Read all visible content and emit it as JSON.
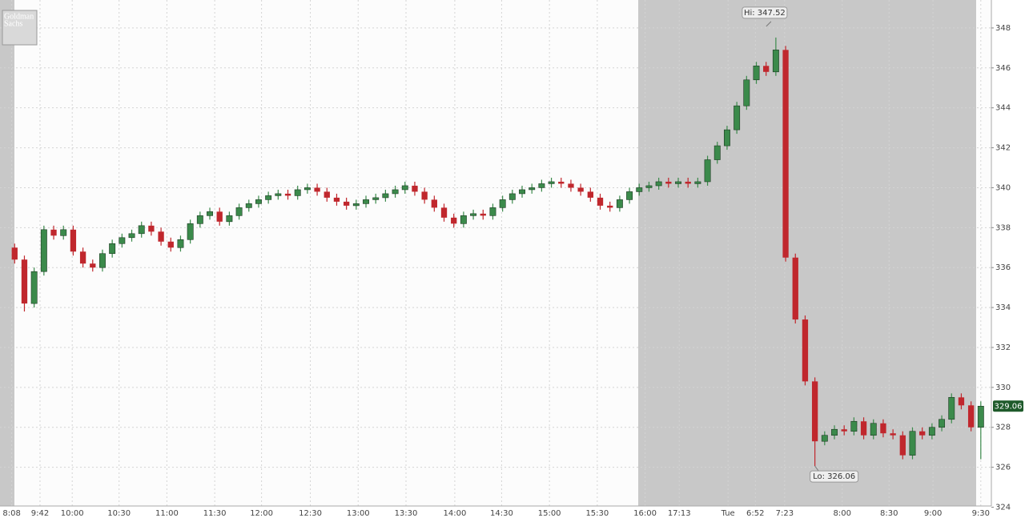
{
  "chart_data": {
    "type": "candlestick",
    "logo": [
      "Goldman",
      "Sachs"
    ],
    "xlim": [
      -1.5,
      100
    ],
    "xticks": [
      {
        "value": -0.3,
        "label": "8:08"
      },
      {
        "value": 2.6,
        "label": "9:42"
      },
      {
        "value": 5.9,
        "label": "10:00"
      },
      {
        "value": 10.7,
        "label": "10:30"
      },
      {
        "value": 15.6,
        "label": "11:00"
      },
      {
        "value": 20.5,
        "label": "11:30"
      },
      {
        "value": 25.3,
        "label": "12:00"
      },
      {
        "value": 30.3,
        "label": "12:30"
      },
      {
        "value": 35.2,
        "label": "13:00"
      },
      {
        "value": 40.1,
        "label": "13:30"
      },
      {
        "value": 45.1,
        "label": "14:00"
      },
      {
        "value": 49.9,
        "label": "14:30"
      },
      {
        "value": 54.8,
        "label": "15:00"
      },
      {
        "value": 59.7,
        "label": "15:30"
      },
      {
        "value": 64.6,
        "label": "16:00"
      },
      {
        "value": 68.1,
        "label": "17:13"
      },
      {
        "value": 73.1,
        "label": "Tue"
      },
      {
        "value": 75.9,
        "label": "6:52"
      },
      {
        "value": 78.9,
        "label": "7:23"
      },
      {
        "value": 84.8,
        "label": "8:00"
      },
      {
        "value": 89.6,
        "label": "8:30"
      },
      {
        "value": 94.1,
        "label": "9:00"
      },
      {
        "value": 99.0,
        "label": "9:30"
      }
    ],
    "ylim": [
      323.9,
      349.4
    ],
    "yticks": [
      324,
      326,
      328,
      330,
      332,
      334,
      336,
      338,
      340,
      342,
      344,
      346,
      348
    ],
    "grid": true,
    "hi_label": "Hi: 347.52",
    "lo_label": "Lo: 326.06",
    "last_label": "329.06",
    "series": [
      {
        "up_color": "#3b8a4b",
        "down_color": "#c0272d",
        "open": [
          337.0,
          336.4,
          334.2,
          335.8,
          337.9,
          337.6,
          337.9,
          336.8,
          336.2,
          336.0,
          336.7,
          337.2,
          337.5,
          337.7,
          338.1,
          337.8,
          337.3,
          337.0,
          337.4,
          338.2,
          338.6,
          338.8,
          338.3,
          338.6,
          339.0,
          339.2,
          339.4,
          339.6,
          339.7,
          339.6,
          339.9,
          340.0,
          339.8,
          339.5,
          339.3,
          339.1,
          339.2,
          339.4,
          339.5,
          339.7,
          339.9,
          340.1,
          339.8,
          339.4,
          339.0,
          338.5,
          338.2,
          338.6,
          338.7,
          338.6,
          339.0,
          339.4,
          339.7,
          339.9,
          340.0,
          340.2,
          340.3,
          340.2,
          340.0,
          339.8,
          339.5,
          339.1,
          339.0,
          339.4,
          339.8,
          340.0,
          340.1,
          340.3,
          340.2,
          340.3,
          340.2,
          340.3,
          341.4,
          342.1,
          342.9,
          344.1,
          345.4,
          346.1,
          345.8,
          346.9,
          336.5,
          333.4,
          330.3,
          327.3,
          327.6,
          327.9,
          327.8,
          328.3,
          327.6,
          328.2,
          327.7,
          327.6,
          326.6,
          327.8,
          327.6,
          328.0,
          328.4,
          329.5,
          329.1,
          328.0
        ],
        "high": [
          337.2,
          336.6,
          336.0,
          338.1,
          338.1,
          338.1,
          338.1,
          337.0,
          336.4,
          336.9,
          337.4,
          337.7,
          337.9,
          338.3,
          338.3,
          338.0,
          337.5,
          337.6,
          338.4,
          338.8,
          339.0,
          339.0,
          338.8,
          339.2,
          339.4,
          339.6,
          339.8,
          339.9,
          339.9,
          340.1,
          340.2,
          340.2,
          340.0,
          339.7,
          339.5,
          339.4,
          339.6,
          339.7,
          339.9,
          340.1,
          340.3,
          340.3,
          340.0,
          339.6,
          339.2,
          338.7,
          338.8,
          338.9,
          338.9,
          339.2,
          339.6,
          339.9,
          340.1,
          340.2,
          340.4,
          340.5,
          340.5,
          340.4,
          340.2,
          340.0,
          339.7,
          339.3,
          339.6,
          340.0,
          340.2,
          340.3,
          340.5,
          340.5,
          340.5,
          340.5,
          340.5,
          341.6,
          342.3,
          343.1,
          344.3,
          345.6,
          346.3,
          346.3,
          347.52,
          347.1,
          336.7,
          333.6,
          330.5,
          327.8,
          328.1,
          328.1,
          328.5,
          328.5,
          328.4,
          328.4,
          327.9,
          327.8,
          328.0,
          328.0,
          328.2,
          328.6,
          329.7,
          329.7,
          329.3,
          329.3
        ],
        "low": [
          336.2,
          333.8,
          334.0,
          335.6,
          337.4,
          337.4,
          336.6,
          336.0,
          335.8,
          335.8,
          336.5,
          337.0,
          337.3,
          337.5,
          337.6,
          337.1,
          336.8,
          336.8,
          337.2,
          338.0,
          338.4,
          338.1,
          338.1,
          338.4,
          338.8,
          339.0,
          339.2,
          339.4,
          339.4,
          339.4,
          339.7,
          339.6,
          339.3,
          339.1,
          338.9,
          338.9,
          339.0,
          339.2,
          339.3,
          339.5,
          339.7,
          339.6,
          339.2,
          338.8,
          338.3,
          338.0,
          338.0,
          338.4,
          338.4,
          338.4,
          338.8,
          339.2,
          339.5,
          339.7,
          339.8,
          340.0,
          340.0,
          339.8,
          339.6,
          339.3,
          338.9,
          338.8,
          338.8,
          339.2,
          339.6,
          339.8,
          339.9,
          340.0,
          340.0,
          340.0,
          340.0,
          340.1,
          341.2,
          341.9,
          342.7,
          343.9,
          345.2,
          345.6,
          345.6,
          336.3,
          333.2,
          330.1,
          326.06,
          327.1,
          327.4,
          327.6,
          327.6,
          327.4,
          327.4,
          327.5,
          327.4,
          326.4,
          326.4,
          327.4,
          327.4,
          327.8,
          328.2,
          328.9,
          327.8,
          326.4
        ],
        "close": [
          336.4,
          334.2,
          335.8,
          337.9,
          337.6,
          337.9,
          336.8,
          336.2,
          336.0,
          336.7,
          337.2,
          337.5,
          337.7,
          338.1,
          337.8,
          337.3,
          337.0,
          337.4,
          338.2,
          338.6,
          338.8,
          338.3,
          338.6,
          339.0,
          339.2,
          339.4,
          339.6,
          339.7,
          339.6,
          339.9,
          340.0,
          339.8,
          339.5,
          339.3,
          339.1,
          339.2,
          339.4,
          339.5,
          339.7,
          339.9,
          340.1,
          339.8,
          339.4,
          339.0,
          338.5,
          338.2,
          338.6,
          338.7,
          338.6,
          339.0,
          339.4,
          339.7,
          339.9,
          340.0,
          340.2,
          340.3,
          340.2,
          340.0,
          339.8,
          339.5,
          339.1,
          339.0,
          339.4,
          339.8,
          340.0,
          340.1,
          340.3,
          340.2,
          340.3,
          340.2,
          340.3,
          341.4,
          342.1,
          342.9,
          344.1,
          345.4,
          346.1,
          345.8,
          346.9,
          336.5,
          333.4,
          330.3,
          327.3,
          327.6,
          327.9,
          327.8,
          328.3,
          327.6,
          328.2,
          327.7,
          327.6,
          326.6,
          327.8,
          327.6,
          328.0,
          328.4,
          329.5,
          329.1,
          328.0,
          329.06
        ]
      }
    ]
  }
}
